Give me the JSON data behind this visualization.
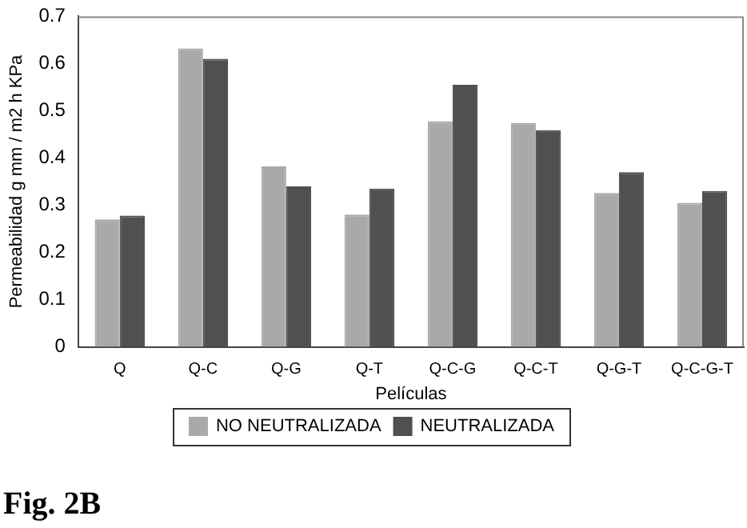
{
  "chart_data": {
    "type": "bar",
    "xlabel": "Películas",
    "ylabel": "Permeabilidad g mm / m2 h KPa",
    "annotations": [
      "Fig. 2B"
    ],
    "categories": [
      "Q",
      "Q-C",
      "Q-G",
      "Q-T",
      "Q-C-G",
      "Q-C-T",
      "Q-G-T",
      "Q-C-G-T"
    ],
    "series": [
      {
        "name": "NO NEUTRALIZADA",
        "color": "#a9a9ab",
        "values": [
          0.27,
          0.632,
          0.382,
          0.28,
          0.478,
          0.474,
          0.326,
          0.305
        ]
      },
      {
        "name": "NEUTRALIZADA",
        "color": "#505050",
        "values": [
          0.278,
          0.61,
          0.34,
          0.335,
          0.555,
          0.459,
          0.37,
          0.33
        ]
      }
    ],
    "ylim": [
      0,
      0.7
    ],
    "yticks": [
      0,
      0.1,
      0.2,
      0.3,
      0.4,
      0.5,
      0.6,
      0.7
    ],
    "grid": false,
    "legend": "bottom"
  }
}
